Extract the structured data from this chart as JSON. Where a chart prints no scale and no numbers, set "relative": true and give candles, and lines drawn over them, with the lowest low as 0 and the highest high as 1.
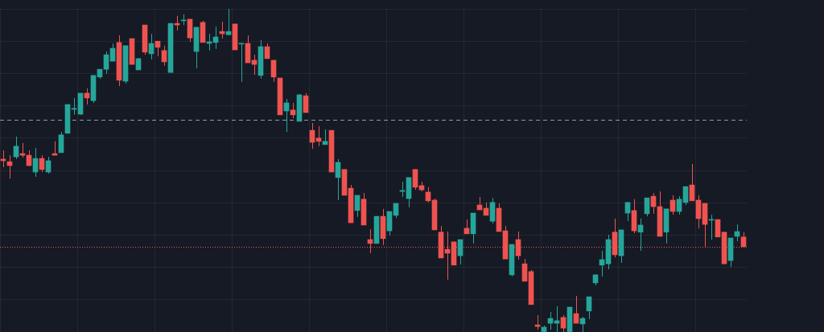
{
  "chart_data": {
    "type": "candlestick",
    "relative": true,
    "grid": true,
    "categories": [
      null,
      null,
      null,
      null,
      null,
      null,
      null,
      null,
      null,
      null,
      null,
      null,
      null,
      null,
      null,
      null,
      null,
      null,
      null,
      null,
      null,
      null,
      null,
      null,
      null,
      null,
      null,
      null,
      null,
      null,
      null,
      null,
      null,
      null,
      null,
      null,
      null,
      null,
      null,
      null,
      null,
      null,
      null,
      null,
      null,
      null,
      null,
      null,
      null,
      null,
      null,
      null,
      null,
      null,
      null,
      null,
      null,
      null,
      null,
      null,
      null,
      null,
      null,
      null,
      null,
      null,
      null,
      null,
      null,
      null,
      null,
      null,
      null,
      null,
      null,
      null,
      null,
      null,
      null,
      null,
      null,
      null,
      null,
      null,
      null,
      null,
      null,
      null,
      null,
      null,
      null,
      null,
      null,
      null,
      null,
      null,
      null,
      null,
      null,
      null,
      null,
      null,
      null,
      null,
      null,
      null,
      null,
      null,
      null,
      null,
      null,
      null,
      null,
      null,
      null,
      null
    ],
    "ohlc": [
      [
        0.535,
        0.562,
        0.51,
        0.53
      ],
      [
        0.527,
        0.547,
        0.475,
        0.515
      ],
      [
        0.542,
        0.605,
        0.535,
        0.575
      ],
      [
        0.552,
        0.585,
        0.54,
        0.547
      ],
      [
        0.547,
        0.562,
        0.513,
        0.515
      ],
      [
        0.495,
        0.57,
        0.48,
        0.537
      ],
      [
        0.537,
        0.547,
        0.495,
        0.503
      ],
      [
        0.495,
        0.542,
        0.49,
        0.53
      ],
      [
        0.552,
        0.59,
        0.547,
        0.547
      ],
      [
        0.555,
        0.619,
        0.555,
        0.61
      ],
      [
        0.615,
        0.704,
        0.615,
        0.704
      ],
      [
        0.689,
        0.724,
        0.672,
        0.692
      ],
      [
        0.674,
        0.739,
        0.672,
        0.739
      ],
      [
        0.739,
        0.754,
        0.704,
        0.724
      ],
      [
        0.716,
        0.794,
        0.709,
        0.794
      ],
      [
        0.789,
        0.813,
        0.784,
        0.813
      ],
      [
        0.813,
        0.868,
        0.799,
        0.858
      ],
      [
        0.838,
        0.893,
        0.838,
        0.878
      ],
      [
        0.896,
        0.918,
        0.761,
        0.779
      ],
      [
        0.776,
        0.886,
        0.769,
        0.886
      ],
      [
        0.908,
        0.908,
        0.828,
        0.828
      ],
      [
        0.811,
        0.848,
        0.811,
        0.846
      ],
      [
        0.95,
        0.95,
        0.858,
        0.866
      ],
      [
        0.861,
        0.923,
        0.843,
        0.893
      ],
      [
        0.9,
        0.9,
        0.853,
        0.881
      ],
      [
        0.871,
        0.886,
        0.824,
        0.836
      ],
      [
        0.803,
        0.955,
        0.803,
        0.955
      ],
      [
        0.955,
        0.978,
        0.933,
        0.95
      ],
      [
        0.963,
        0.983,
        0.95,
        0.965
      ],
      [
        0.968,
        0.968,
        0.898,
        0.91
      ],
      [
        0.868,
        0.943,
        0.816,
        0.943
      ],
      [
        0.958,
        0.963,
        0.896,
        0.896
      ],
      [
        0.893,
        0.923,
        0.871,
        0.898
      ],
      [
        0.896,
        0.945,
        0.876,
        0.913
      ],
      [
        0.93,
        0.96,
        0.908,
        0.923
      ],
      [
        0.92,
        1,
        0.918,
        0.93
      ],
      [
        0.953,
        0.955,
        0.873,
        0.873
      ],
      [
        0.891,
        0.893,
        0.774,
        0.893
      ],
      [
        0.893,
        0.918,
        0.833,
        0.833
      ],
      [
        0.841,
        0.858,
        0.796,
        0.828
      ],
      [
        0.794,
        0.903,
        0.784,
        0.883
      ],
      [
        0.883,
        0.893,
        0.846,
        0.846
      ],
      [
        0.841,
        0.841,
        0.774,
        0.789
      ],
      [
        0.786,
        0.786,
        0.672,
        0.672
      ],
      [
        0.684,
        0.721,
        0.619,
        0.709
      ],
      [
        0.687,
        0.709,
        0.662,
        0.672
      ],
      [
        0.652,
        0.736,
        0.652,
        0.734
      ],
      [
        0.731,
        0.739,
        0.679,
        0.679
      ],
      [
        0.624,
        0.647,
        0.567,
        0.587
      ],
      [
        0.6,
        0.637,
        0.575,
        0.59
      ],
      [
        0.58,
        0.627,
        0.58,
        0.59
      ],
      [
        0.624,
        0.624,
        0.495,
        0.495
      ],
      [
        0.478,
        0.535,
        0.408,
        0.525
      ],
      [
        0.503,
        0.503,
        0.423,
        0.423
      ],
      [
        0.445,
        0.455,
        0.338,
        0.338
      ],
      [
        0.376,
        0.423,
        0.356,
        0.423
      ],
      [
        0.411,
        0.43,
        0.331,
        0.331
      ],
      [
        0.286,
        0.318,
        0.244,
        0.274
      ],
      [
        0.274,
        0.358,
        0.274,
        0.358
      ],
      [
        0.358,
        0.381,
        0.269,
        0.289
      ],
      [
        0.313,
        0.373,
        0.299,
        0.373
      ],
      [
        0.361,
        0.398,
        0.353,
        0.398
      ],
      [
        0.435,
        0.465,
        0.418,
        0.438
      ],
      [
        0.413,
        0.478,
        0.386,
        0.478
      ],
      [
        0.503,
        0.503,
        0.44,
        0.448
      ],
      [
        0.453,
        0.465,
        0.435,
        0.44
      ],
      [
        0.433,
        0.448,
        0.401,
        0.406
      ],
      [
        0.408,
        0.413,
        0.316,
        0.316
      ],
      [
        0.309,
        0.328,
        0.229,
        0.229
      ],
      [
        0.256,
        0.311,
        0.162,
        0.244
      ],
      [
        0.279,
        0.279,
        0.207,
        0.207
      ],
      [
        0.236,
        0.286,
        0.209,
        0.286
      ],
      [
        0.321,
        0.348,
        0.304,
        0.304
      ],
      [
        0.304,
        0.368,
        0.274,
        0.368
      ],
      [
        0.393,
        0.418,
        0.378,
        0.378
      ],
      [
        0.383,
        0.401,
        0.361,
        0.361
      ],
      [
        0.343,
        0.415,
        0.336,
        0.401
      ],
      [
        0.383,
        0.398,
        0.311,
        0.311
      ],
      [
        0.313,
        0.328,
        0.226,
        0.226
      ],
      [
        0.177,
        0.271,
        0.172,
        0.271
      ],
      [
        0.286,
        0.311,
        0.224,
        0.236
      ],
      [
        0.211,
        0.226,
        0.157,
        0.157
      ],
      [
        0.187,
        0.192,
        0.085,
        0.085
      ],
      [
        0.022,
        0.052,
        0.007,
        0.017
      ],
      [
        0,
        0.02,
        0,
        0.015
      ],
      [
        0.027,
        0.062,
        0.007,
        0.042
      ],
      [
        0.027,
        0.08,
        0,
        0.035
      ],
      [
        0.045,
        0.052,
        0,
        0.012
      ],
      [
        0,
        0.077,
        0,
        0.077
      ],
      [
        0.057,
        0.112,
        0.027,
        0.027
      ],
      [
        0.025,
        0.047,
        0,
        0.042
      ],
      [
        0.065,
        0.109,
        0.04,
        0.109
      ],
      [
        0.152,
        0.177,
        0.144,
        0.177
      ],
      [
        0.207,
        0.251,
        0.172,
        0.224
      ],
      [
        0.211,
        0.301,
        0.194,
        0.286
      ],
      [
        0.309,
        0.351,
        0.231,
        0.239
      ],
      [
        0.236,
        0.316,
        0.214,
        0.316
      ],
      [
        0.368,
        0.401,
        0.343,
        0.401
      ],
      [
        0.376,
        0.411,
        0.306,
        0.313
      ],
      [
        0.309,
        0.351,
        0.251,
        0.331
      ],
      [
        0.366,
        0.415,
        0.358,
        0.415
      ],
      [
        0.42,
        0.43,
        0.366,
        0.388
      ],
      [
        0.388,
        0.435,
        0.296,
        0.296
      ],
      [
        0.309,
        0.381,
        0.274,
        0.381
      ],
      [
        0.408,
        0.423,
        0.363,
        0.373
      ],
      [
        0.373,
        0.42,
        0.363,
        0.411
      ],
      [
        0.401,
        0.45,
        0.393,
        0.45
      ],
      [
        0.455,
        0.52,
        0.406,
        0.406
      ],
      [
        0.408,
        0.423,
        0.321,
        0.351
      ],
      [
        0.398,
        0.398,
        0.264,
        0.333
      ],
      [
        0.346,
        0.363,
        0.286,
        0.348
      ],
      [
        0.348,
        0.348,
        0.294,
        0.294
      ],
      [
        0.309,
        0.309,
        0.211,
        0.211
      ],
      [
        0.221,
        0.291,
        0.201,
        0.291
      ],
      [
        0.296,
        0.333,
        0.281,
        0.311
      ],
      [
        0.294,
        0.309,
        0.264,
        0.264
      ]
    ],
    "colors": [
      "#ef5350",
      "#ef5350",
      "#26a69a",
      "#ef5350",
      "#ef5350",
      "#26a69a",
      "#ef5350",
      "#26a69a",
      "#ef5350",
      "#26a69a",
      "#26a69a",
      "#26a69a",
      "#26a69a",
      "#ef5350",
      "#26a69a",
      "#26a69a",
      "#26a69a",
      "#26a69a",
      "#ef5350",
      "#26a69a",
      "#ef5350",
      "#26a69a",
      "#ef5350",
      "#26a69a",
      "#ef5350",
      "#ef5350",
      "#26a69a",
      "#ef5350",
      "#26a69a",
      "#ef5350",
      "#26a69a",
      "#ef5350",
      "#26a69a",
      "#26a69a",
      "#ef5350",
      "#26a69a",
      "#ef5350",
      "#26a69a",
      "#ef5350",
      "#ef5350",
      "#26a69a",
      "#ef5350",
      "#ef5350",
      "#ef5350",
      "#26a69a",
      "#ef5350",
      "#26a69a",
      "#ef5350",
      "#ef5350",
      "#ef5350",
      "#26a69a",
      "#ef5350",
      "#26a69a",
      "#ef5350",
      "#ef5350",
      "#26a69a",
      "#ef5350",
      "#ef5350",
      "#26a69a",
      "#ef5350",
      "#26a69a",
      "#26a69a",
      "#26a69a",
      "#26a69a",
      "#ef5350",
      "#ef5350",
      "#ef5350",
      "#ef5350",
      "#ef5350",
      "#ef5350",
      "#ef5350",
      "#26a69a",
      "#ef5350",
      "#26a69a",
      "#ef5350",
      "#ef5350",
      "#26a69a",
      "#ef5350",
      "#ef5350",
      "#26a69a",
      "#ef5350",
      "#ef5350",
      "#ef5350",
      "#ef5350",
      "#26a69a",
      "#26a69a",
      "#26a69a",
      "#ef5350",
      "#26a69a",
      "#ef5350",
      "#26a69a",
      "#26a69a",
      "#26a69a",
      "#26a69a",
      "#26a69a",
      "#ef5350",
      "#26a69a",
      "#26a69a",
      "#ef5350",
      "#26a69a",
      "#26a69a",
      "#ef5350",
      "#ef5350",
      "#26a69a",
      "#ef5350",
      "#26a69a",
      "#26a69a",
      "#ef5350",
      "#ef5350",
      "#ef5350",
      "#26a69a",
      "#ef5350",
      "#ef5350",
      "#26a69a",
      "#26a69a",
      "#ef5350"
    ],
    "ref_lines": [
      {
        "axis": "y",
        "value": 0.657,
        "color": "#9598a1",
        "line_style": "dashed"
      },
      {
        "axis": "y",
        "value": 0.264,
        "color": "#ef5350",
        "line_style": "dotted"
      }
    ]
  }
}
